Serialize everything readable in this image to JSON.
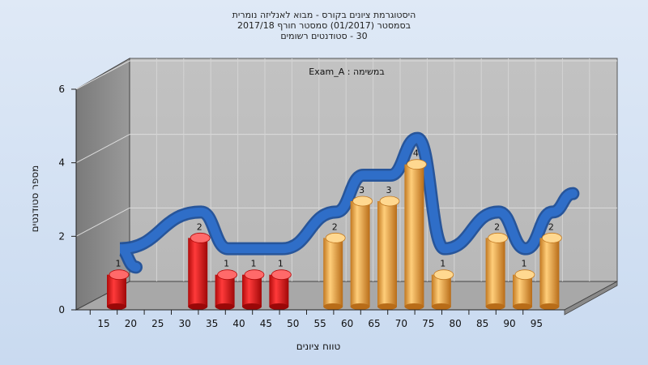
{
  "chart_data": {
    "type": "bar",
    "title_lines": [
      "היסטוגרמת ציונים בקורס - מבוא לאנליזה נומרית",
      "בסמסטר  (01/2017)  סמסטר חורף 2017/18",
      "30 - סטודנטים רשומים"
    ],
    "inner_label": "במשימה : Exam_A",
    "xlabel": "טווח ציונים",
    "ylabel": "מספר סטודנטים",
    "ylim": [
      0,
      6
    ],
    "yticks": [
      "0",
      "2",
      "4",
      "6"
    ],
    "xticks": [
      "15",
      "20",
      "25",
      "30",
      "35",
      "40",
      "45",
      "50",
      "55",
      "60",
      "65",
      "70",
      "75",
      "80",
      "85",
      "90",
      "95"
    ],
    "x": [
      15,
      30,
      35,
      40,
      45,
      55,
      60,
      65,
      70,
      75,
      85,
      90,
      95
    ],
    "values": [
      1,
      2,
      1,
      1,
      1,
      2,
      3,
      3,
      4,
      1,
      2,
      1,
      2
    ],
    "bar_colors": [
      "#d81818",
      "#d81818",
      "#d81818",
      "#d81818",
      "#d81818",
      "#e8a040",
      "#e8a040",
      "#e8a040",
      "#e8a040",
      "#e8a040",
      "#e8a040",
      "#e8a040",
      "#e8a040"
    ],
    "curve_color": "#2f6ec8",
    "grid": true
  }
}
